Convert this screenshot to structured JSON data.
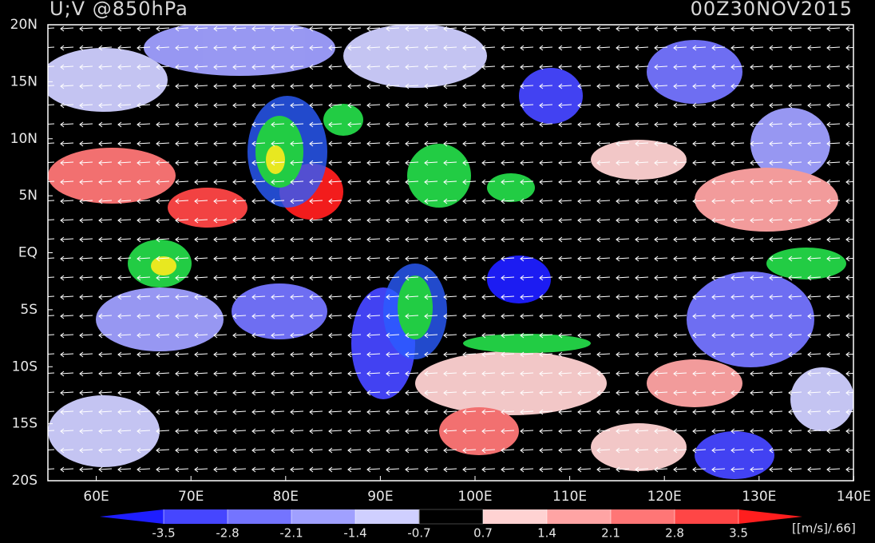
{
  "header": {
    "title": "U;V @850hPa",
    "time": "00Z30NOV2015"
  },
  "axes": {
    "x_labels": [
      "60E",
      "70E",
      "80E",
      "90E",
      "100E",
      "110E",
      "120E",
      "130E",
      "140E"
    ],
    "y_labels": [
      "20N",
      "15N",
      "10N",
      "5N",
      "EQ",
      "5S",
      "10S",
      "15S",
      "20S"
    ]
  },
  "colorbar": {
    "levels": [
      -3.5,
      -2.8,
      -2.1,
      -1.4,
      -0.7,
      0.7,
      1.4,
      2.1,
      2.8,
      3.5
    ],
    "colors": [
      "#1e1eff",
      "#4646ff",
      "#7474ff",
      "#a0a0ff",
      "#cfcfff",
      "#000000",
      "#ffd2d2",
      "#ffa4a4",
      "#ff7676",
      "#ff4646",
      "#ff1e1e"
    ],
    "unit": "[[m/s]/.66]"
  }
}
